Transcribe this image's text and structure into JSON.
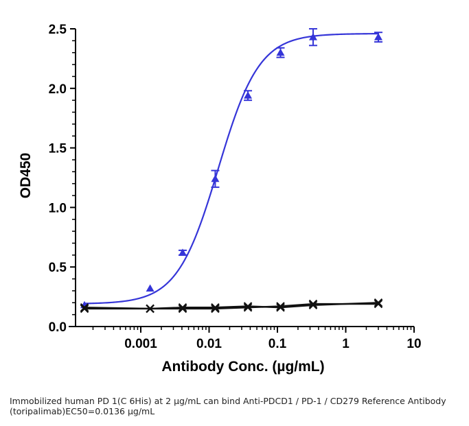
{
  "chart_data": {
    "type": "line",
    "xlabel": "Antibody Conc. (µg/mL)",
    "ylabel": "OD450",
    "x_scale": "log",
    "xlim": [
      0.00015,
      10
    ],
    "ylim": [
      0,
      2.5
    ],
    "x_ticks": [
      0.001,
      0.01,
      0.1,
      1,
      10
    ],
    "x_tick_labels": [
      "0.001",
      "0.01",
      "0.1",
      "1",
      "10"
    ],
    "y_ticks": [
      0,
      0.5,
      1.0,
      1.5,
      2.0,
      2.5
    ],
    "y_tick_labels": [
      "0.0",
      "0.5",
      "1.0",
      "1.5",
      "2.0",
      "2.5"
    ],
    "grid": false,
    "series": [
      {
        "marker": "triangle",
        "color": "#3535d8",
        "x": [
          0.00015,
          0.00137,
          0.0041,
          0.0123,
          0.037,
          0.111,
          0.333,
          3.0
        ],
        "y": [
          0.18,
          0.32,
          0.62,
          1.24,
          1.94,
          2.3,
          2.43,
          2.43
        ],
        "err": [
          0.01,
          0.01,
          0.02,
          0.07,
          0.04,
          0.04,
          0.07,
          0.04
        ],
        "fit": {
          "bottom": 0.19,
          "top": 2.46,
          "ec50": 0.0136,
          "hill": 1.45
        }
      },
      {
        "marker": "x",
        "color": "#111111",
        "x": [
          0.00015,
          0.00137,
          0.0041,
          0.0123,
          0.037,
          0.111,
          0.333,
          3.0
        ],
        "y": [
          0.15,
          0.15,
          0.16,
          0.16,
          0.17,
          0.16,
          0.18,
          0.2
        ]
      },
      {
        "marker": "x",
        "color": "#111111",
        "x": [
          0.00015,
          0.00137,
          0.0041,
          0.0123,
          0.037,
          0.111,
          0.333,
          3.0
        ],
        "y": [
          0.16,
          0.15,
          0.15,
          0.15,
          0.16,
          0.17,
          0.19,
          0.19
        ]
      }
    ]
  },
  "caption": "Immobilized human PD 1(C 6His) at 2  µg/mL can bind  Anti-PDCD1 / PD-1 / CD279 Reference Antibody (toripalimab)\u0016EC50=0.0136 µg/mL"
}
